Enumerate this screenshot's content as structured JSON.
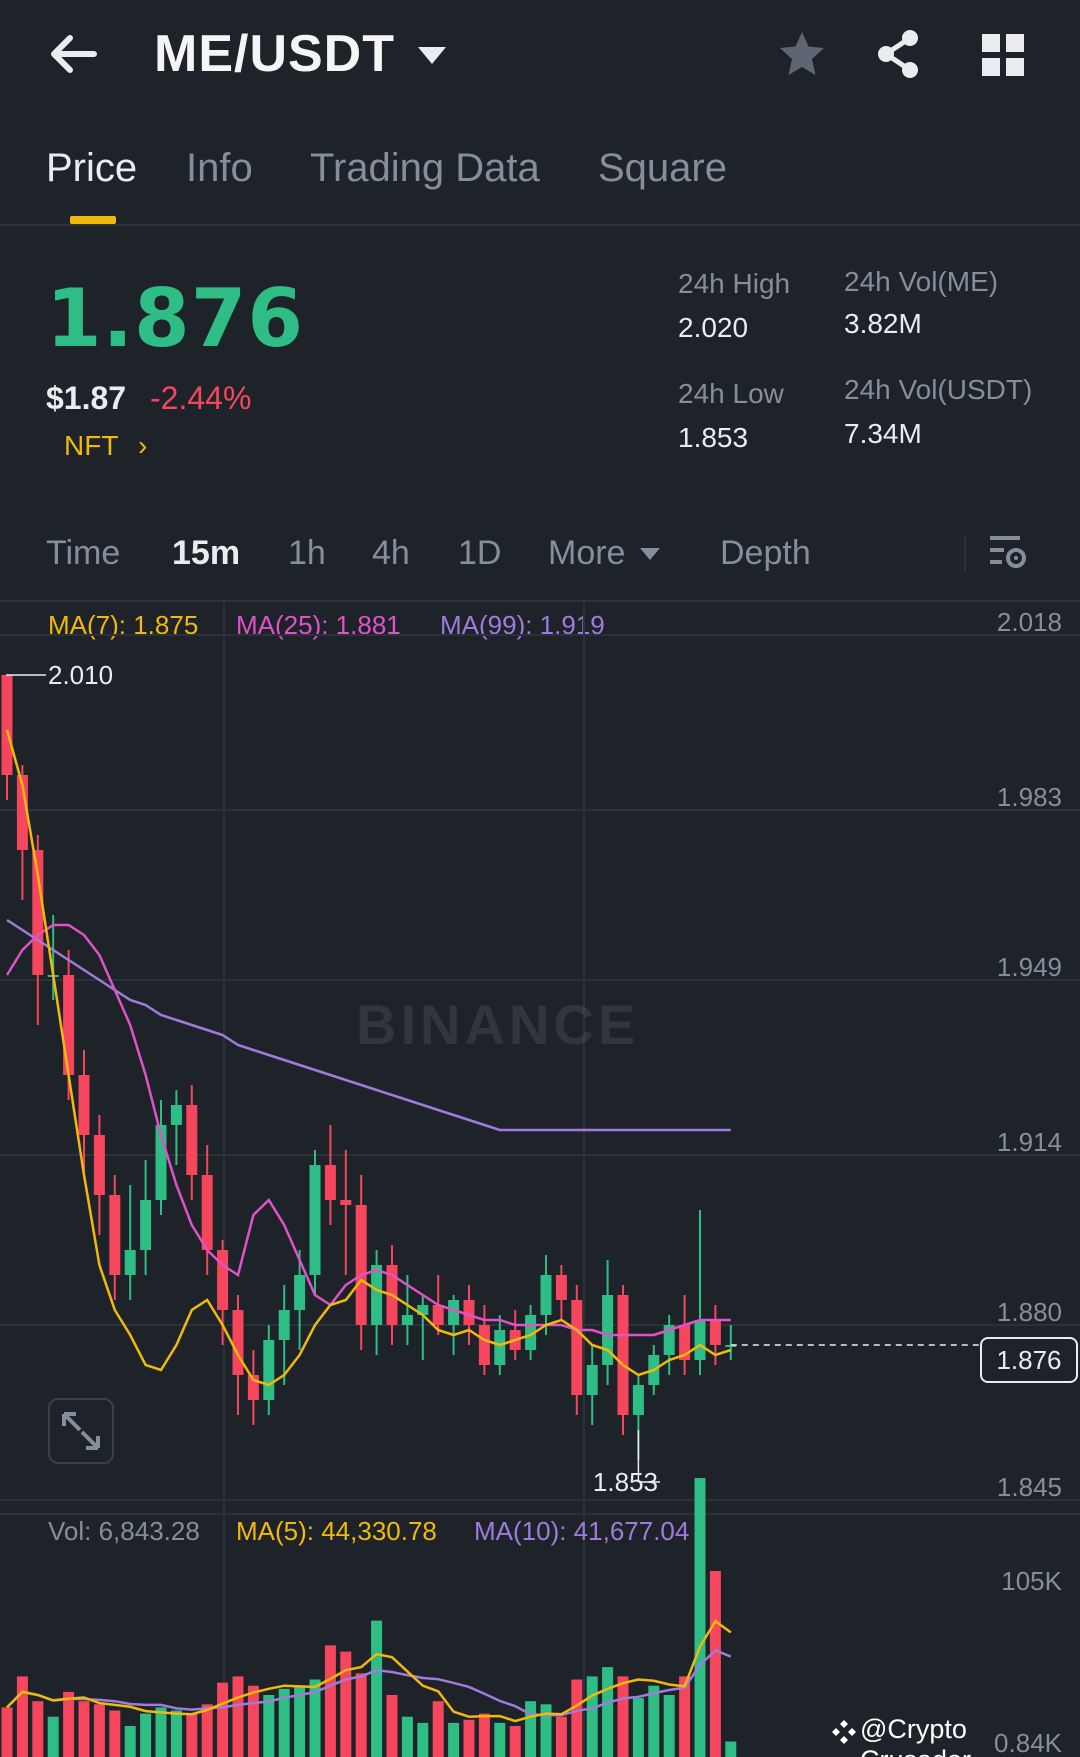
{
  "header": {
    "pair": "ME/USDT",
    "icons": {
      "back": "arrow-left-icon",
      "pair_menu": "caret-down-icon",
      "favorite": "star-icon",
      "share": "share-icon",
      "layout": "grid-icon"
    }
  },
  "tabs": [
    {
      "label": "Price",
      "active": true
    },
    {
      "label": "Info",
      "active": false
    },
    {
      "label": "Trading Data",
      "active": false
    },
    {
      "label": "Square",
      "active": false
    }
  ],
  "ticker": {
    "last_price": "1.876",
    "usd_price": "$1.87",
    "change_pct": "-2.44%",
    "tag": "NFT",
    "tag_chevron": "›",
    "high_label": "24h High",
    "high_value": "2.020",
    "low_label": "24h Low",
    "low_value": "1.853",
    "vol_base_label": "24h Vol(ME)",
    "vol_base_value": "3.82M",
    "vol_quote_label": "24h Vol(USDT)",
    "vol_quote_value": "7.34M",
    "up_color": "#2ebd85",
    "down_color": "#f6465d"
  },
  "intervals": {
    "time_label": "Time",
    "items": [
      "15m",
      "1h",
      "4h",
      "1D"
    ],
    "active": "15m",
    "more_label": "More",
    "depth_label": "Depth",
    "settings_icon": "chart-settings-icon"
  },
  "indicators": {
    "ma7": "MA(7): 1.875",
    "ma25": "MA(25): 1.881",
    "ma99": "MA(99): 1.919",
    "vol": "Vol: 6,843.28",
    "vol_ma5": "MA(5): 44,330.78",
    "vol_ma10": "MA(10): 41,677.04",
    "colors": {
      "ma7": "#f0b90b",
      "ma25": "#e052c8",
      "ma99": "#9f7cdb"
    }
  },
  "chart_data": {
    "type": "candlestick",
    "interval": "15m",
    "price_axis": {
      "ticks": [
        "2.018",
        "1.983",
        "1.949",
        "1.914",
        "1.880",
        "1.845"
      ],
      "range": [
        1.845,
        2.018
      ]
    },
    "volume_axis": {
      "ticks": [
        "105K",
        "0.84K"
      ]
    },
    "max_label": "2.010",
    "min_label": "1.853",
    "current_price_label": "1.876",
    "current_price": 1.876,
    "watermark": "BINANCE",
    "candles": [
      [
        2.01,
        2.01,
        1.985,
        1.99
      ],
      [
        1.99,
        1.992,
        1.965,
        1.975
      ],
      [
        1.975,
        1.978,
        1.94,
        1.95
      ],
      [
        1.95,
        1.962,
        1.945,
        1.95
      ],
      [
        1.95,
        1.955,
        1.925,
        1.93
      ],
      [
        1.93,
        1.935,
        1.91,
        1.918
      ],
      [
        1.918,
        1.922,
        1.898,
        1.906
      ],
      [
        1.906,
        1.91,
        1.885,
        1.89
      ],
      [
        1.89,
        1.908,
        1.885,
        1.895
      ],
      [
        1.895,
        1.913,
        1.89,
        1.905
      ],
      [
        1.905,
        1.925,
        1.902,
        1.92
      ],
      [
        1.92,
        1.927,
        1.912,
        1.924
      ],
      [
        1.924,
        1.928,
        1.905,
        1.91
      ],
      [
        1.91,
        1.916,
        1.89,
        1.895
      ],
      [
        1.895,
        1.897,
        1.876,
        1.883
      ],
      [
        1.883,
        1.886,
        1.862,
        1.87
      ],
      [
        1.87,
        1.875,
        1.86,
        1.865
      ],
      [
        1.865,
        1.88,
        1.862,
        1.877
      ],
      [
        1.877,
        1.888,
        1.868,
        1.883
      ],
      [
        1.883,
        1.895,
        1.875,
        1.89
      ],
      [
        1.89,
        1.915,
        1.886,
        1.912
      ],
      [
        1.912,
        1.92,
        1.9,
        1.905
      ],
      [
        1.905,
        1.915,
        1.89,
        1.904
      ],
      [
        1.904,
        1.91,
        1.875,
        1.88
      ],
      [
        1.88,
        1.895,
        1.874,
        1.892
      ],
      [
        1.892,
        1.896,
        1.876,
        1.88
      ],
      [
        1.88,
        1.89,
        1.876,
        1.882
      ],
      [
        1.882,
        1.886,
        1.873,
        1.884
      ],
      [
        1.884,
        1.89,
        1.878,
        1.88
      ],
      [
        1.88,
        1.886,
        1.874,
        1.885
      ],
      [
        1.885,
        1.888,
        1.876,
        1.88
      ],
      [
        1.88,
        1.884,
        1.87,
        1.872
      ],
      [
        1.872,
        1.882,
        1.87,
        1.879
      ],
      [
        1.879,
        1.883,
        1.873,
        1.875
      ],
      [
        1.875,
        1.884,
        1.873,
        1.882
      ],
      [
        1.882,
        1.894,
        1.878,
        1.89
      ],
      [
        1.89,
        1.892,
        1.881,
        1.885
      ],
      [
        1.885,
        1.888,
        1.862,
        1.866
      ],
      [
        1.866,
        1.876,
        1.86,
        1.872
      ],
      [
        1.872,
        1.893,
        1.868,
        1.886
      ],
      [
        1.886,
        1.888,
        1.858,
        1.862
      ],
      [
        1.862,
        1.87,
        1.853,
        1.868
      ],
      [
        1.868,
        1.876,
        1.866,
        1.874
      ],
      [
        1.874,
        1.882,
        1.87,
        1.88
      ],
      [
        1.88,
        1.886,
        1.87,
        1.873
      ],
      [
        1.873,
        1.903,
        1.87,
        1.881
      ],
      [
        1.881,
        1.884,
        1.872,
        1.876
      ],
      [
        1.876,
        1.88,
        1.873,
        1.876
      ]
    ],
    "volumes": [
      32,
      52,
      36,
      26,
      42,
      36,
      34,
      30,
      20,
      28,
      32,
      30,
      28,
      34,
      48,
      52,
      46,
      40,
      44,
      46,
      50,
      72,
      68,
      54,
      88,
      40,
      26,
      22,
      36,
      22,
      24,
      28,
      22,
      20,
      36,
      34,
      26,
      50,
      52,
      58,
      52,
      38,
      46,
      40,
      52,
      180,
      120,
      10
    ],
    "ma7": [
      1.999,
      1.988,
      1.97,
      1.95,
      1.93,
      1.91,
      1.892,
      1.883,
      1.878,
      1.872,
      1.871,
      1.876,
      1.883,
      1.885,
      1.88,
      1.874,
      1.869,
      1.868,
      1.87,
      1.874,
      1.88,
      1.884,
      1.885,
      1.889,
      1.887,
      1.886,
      1.884,
      1.882,
      1.879,
      1.878,
      1.879,
      1.877,
      1.876,
      1.877,
      1.878,
      1.88,
      1.881,
      1.879,
      1.876,
      1.875,
      1.872,
      1.87,
      1.871,
      1.873,
      1.874,
      1.876,
      1.874,
      1.875
    ],
    "ma25": [
      1.95,
      1.955,
      1.958,
      1.96,
      1.96,
      1.958,
      1.954,
      1.947,
      1.94,
      1.93,
      1.918,
      1.908,
      1.9,
      1.895,
      1.892,
      1.89,
      1.902,
      1.905,
      1.9,
      1.893,
      1.886,
      1.884,
      1.888,
      1.89,
      1.891,
      1.89,
      1.888,
      1.886,
      1.884,
      1.883,
      1.882,
      1.881,
      1.881,
      1.88,
      1.88,
      1.88,
      1.88,
      1.879,
      1.879,
      1.878,
      1.878,
      1.878,
      1.878,
      1.879,
      1.88,
      1.881,
      1.881,
      1.881
    ],
    "ma99": [
      1.961,
      1.959,
      1.957,
      1.955,
      1.953,
      1.951,
      1.949,
      1.947,
      1.945,
      1.944,
      1.942,
      1.941,
      1.94,
      1.939,
      1.938,
      1.936,
      1.935,
      1.934,
      1.933,
      1.932,
      1.931,
      1.93,
      1.929,
      1.928,
      1.927,
      1.926,
      1.925,
      1.924,
      1.923,
      1.922,
      1.921,
      1.92,
      1.919,
      1.919,
      1.919,
      1.919,
      1.919,
      1.919,
      1.919,
      1.919,
      1.919,
      1.919,
      1.919,
      1.919,
      1.919,
      1.919,
      1.919,
      1.919
    ]
  },
  "footer": {
    "credit": "@Crypto Crusador",
    "credit_icon": "binance-diamond-icon"
  }
}
